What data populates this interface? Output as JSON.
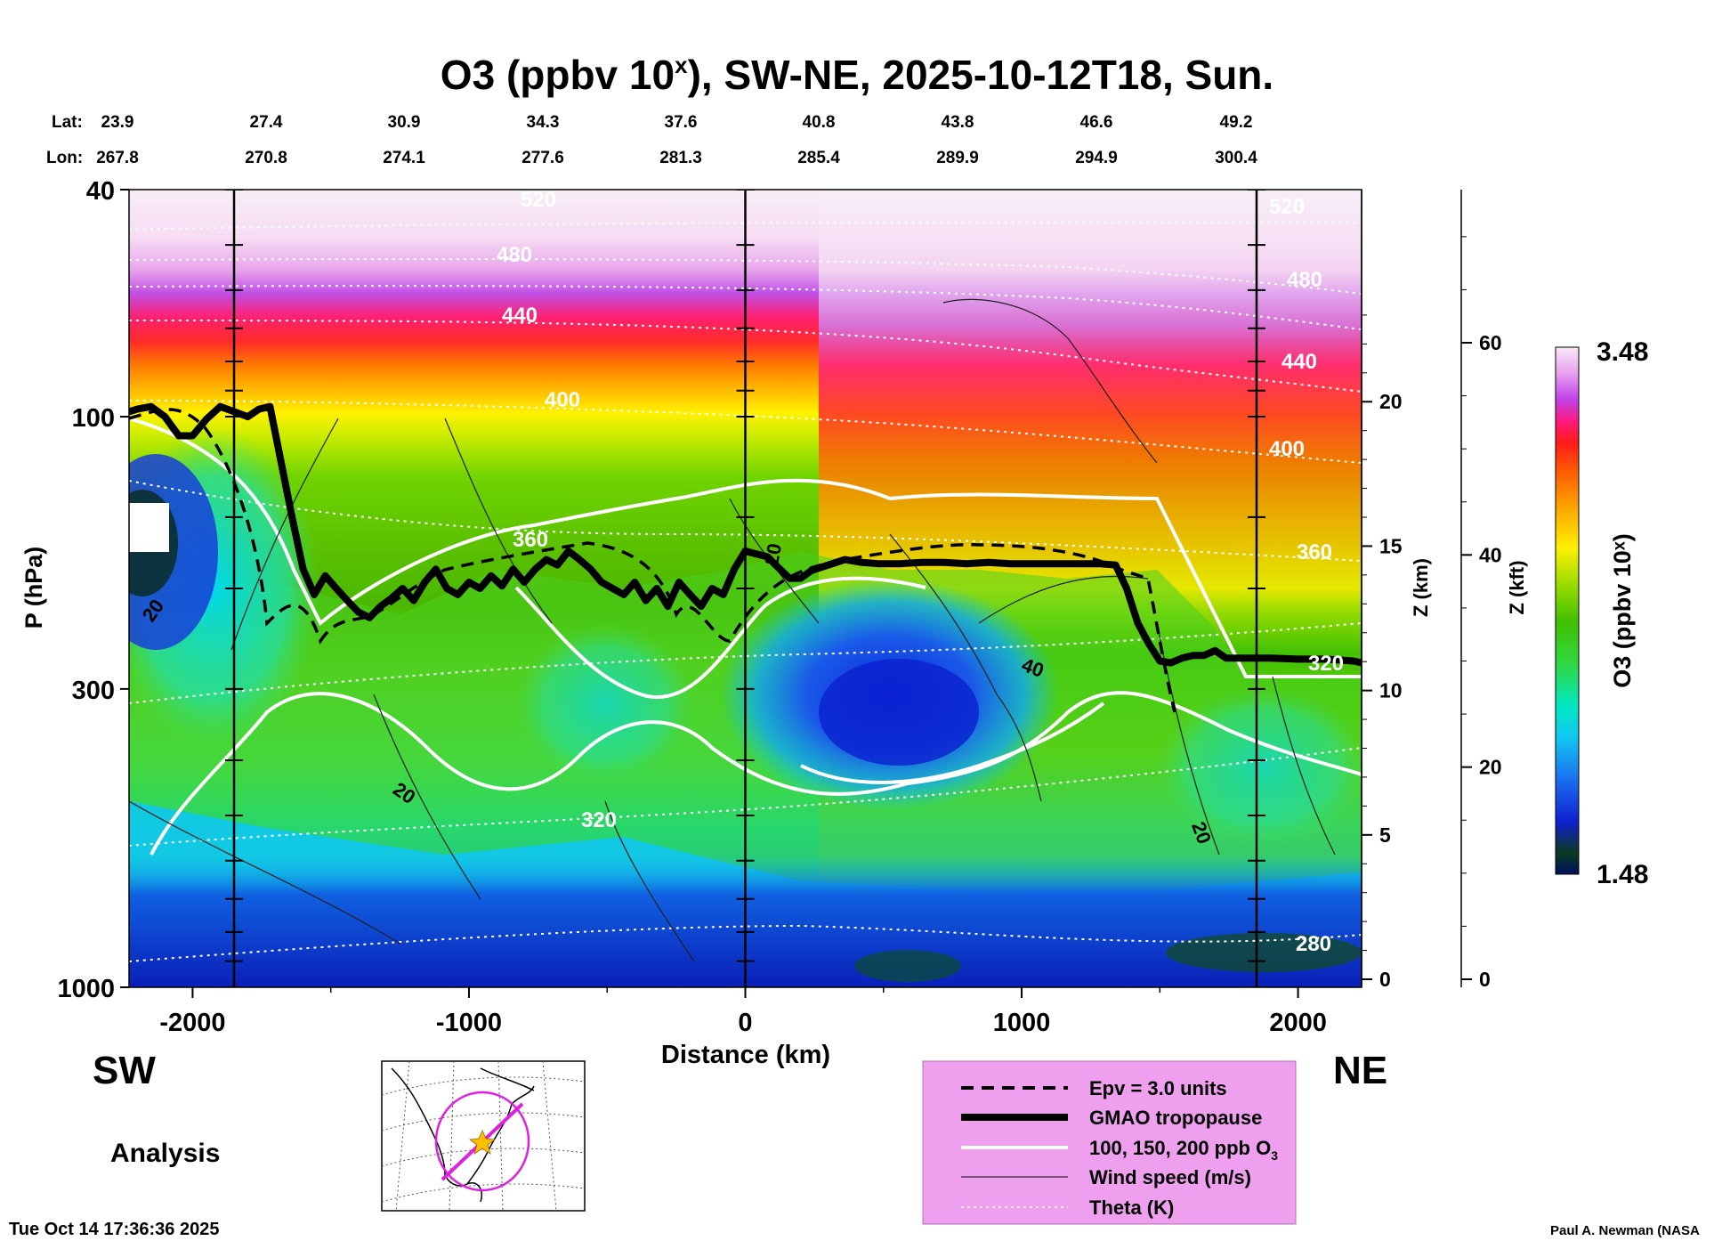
{
  "chart_data": {
    "type": "heatmap",
    "title_prefix": "O3 (ppbv 10",
    "title_sup": "x",
    "title_suffix": "), SW-NE, 2025-10-12T18, Sun.",
    "xlabel": "Distance (km)",
    "ylabel": "P (hPa)",
    "z_km_label": "Z (km)",
    "z_kft_label": "Z (kft)",
    "colorbar_label": "O3 (ppbv 10ˣ)",
    "colorbar_max": "3.48",
    "colorbar_min": "1.48",
    "colorbar_range": [
      1.48,
      3.48
    ],
    "xlim": [
      -2230,
      2230
    ],
    "ylim_hpa": [
      1000,
      40
    ],
    "x_ticks": [
      -2000,
      -1000,
      0,
      1000,
      2000
    ],
    "x_tick_labels": [
      "-2000",
      "-1000",
      "0",
      "1000",
      "2000"
    ],
    "p_ticks": [
      40,
      100,
      300,
      1000
    ],
    "p_tick_labels": [
      "40",
      "100",
      "300",
      "1000"
    ],
    "z_km_ticks": [
      0,
      5,
      10,
      15,
      20
    ],
    "z_km_tick_labels": [
      "0",
      "5",
      "10",
      "15",
      "20"
    ],
    "z_kft_ticks": [
      0,
      20,
      40,
      60
    ],
    "z_kft_tick_labels": [
      "0",
      "20",
      "40",
      "60"
    ],
    "lat_label": "Lat:",
    "lon_label": "Lon:",
    "lats": [
      "23.9",
      "27.4",
      "30.9",
      "34.3",
      "37.6",
      "40.8",
      "43.8",
      "46.6",
      "49.2"
    ],
    "lons": [
      "267.8",
      "270.8",
      "274.1",
      "277.6",
      "281.3",
      "285.4",
      "289.9",
      "294.9",
      "300.4"
    ],
    "station_x_km": [
      -1850,
      0,
      1850
    ],
    "theta_labels": [
      "520",
      "480",
      "440",
      "400",
      "360",
      "320",
      "280",
      "520",
      "480",
      "440",
      "400",
      "360",
      "320"
    ],
    "wind_labels": [
      "20",
      "20",
      "20",
      "40",
      "20"
    ],
    "tropopause_hpa": [
      [
        -2230,
        98
      ],
      [
        -2200,
        97
      ],
      [
        -2150,
        96
      ],
      [
        -2100,
        100
      ],
      [
        -2050,
        108
      ],
      [
        -2000,
        108
      ],
      [
        -1950,
        101
      ],
      [
        -1900,
        96
      ],
      [
        -1850,
        98
      ],
      [
        -1800,
        100
      ],
      [
        -1760,
        97
      ],
      [
        -1720,
        96
      ],
      [
        -1680,
        120
      ],
      [
        -1640,
        150
      ],
      [
        -1600,
        185
      ],
      [
        -1560,
        205
      ],
      [
        -1520,
        190
      ],
      [
        -1480,
        200
      ],
      [
        -1440,
        210
      ],
      [
        -1400,
        220
      ],
      [
        -1360,
        225
      ],
      [
        -1320,
        215
      ],
      [
        -1280,
        208
      ],
      [
        -1240,
        200
      ],
      [
        -1200,
        210
      ],
      [
        -1160,
        195
      ],
      [
        -1120,
        185
      ],
      [
        -1080,
        200
      ],
      [
        -1040,
        205
      ],
      [
        -1000,
        195
      ],
      [
        -960,
        200
      ],
      [
        -920,
        190
      ],
      [
        -880,
        198
      ],
      [
        -840,
        185
      ],
      [
        -800,
        195
      ],
      [
        -760,
        185
      ],
      [
        -720,
        178
      ],
      [
        -680,
        182
      ],
      [
        -640,
        172
      ],
      [
        -600,
        178
      ],
      [
        -560,
        185
      ],
      [
        -520,
        195
      ],
      [
        -480,
        200
      ],
      [
        -440,
        205
      ],
      [
        -400,
        195
      ],
      [
        -360,
        210
      ],
      [
        -320,
        200
      ],
      [
        -280,
        215
      ],
      [
        -240,
        195
      ],
      [
        -200,
        205
      ],
      [
        -160,
        215
      ],
      [
        -120,
        200
      ],
      [
        -80,
        205
      ],
      [
        -40,
        185
      ],
      [
        0,
        172
      ],
      [
        40,
        174
      ],
      [
        80,
        176
      ],
      [
        120,
        184
      ],
      [
        160,
        192
      ],
      [
        200,
        192
      ],
      [
        240,
        186
      ],
      [
        300,
        182
      ],
      [
        360,
        178
      ],
      [
        420,
        180
      ],
      [
        480,
        181
      ],
      [
        560,
        181
      ],
      [
        640,
        180
      ],
      [
        720,
        180
      ],
      [
        800,
        181
      ],
      [
        880,
        180
      ],
      [
        960,
        181
      ],
      [
        1040,
        181
      ],
      [
        1120,
        181
      ],
      [
        1200,
        181
      ],
      [
        1280,
        181
      ],
      [
        1340,
        182
      ],
      [
        1380,
        200
      ],
      [
        1420,
        230
      ],
      [
        1460,
        250
      ],
      [
        1500,
        268
      ],
      [
        1540,
        270
      ],
      [
        1580,
        265
      ],
      [
        1620,
        262
      ],
      [
        1660,
        262
      ],
      [
        1700,
        257
      ],
      [
        1740,
        265
      ],
      [
        1800,
        265
      ],
      [
        1900,
        265
      ],
      [
        2000,
        266
      ],
      [
        2100,
        266
      ],
      [
        2200,
        268
      ],
      [
        2230,
        270
      ]
    ],
    "legend": {
      "epv": "Epv = 3.0 units",
      "tropopause": "GMAO tropopause",
      "ozone_contours_prefix": "100, 150, 200 ppb O",
      "ozone_contours_sub": "3",
      "wind": "Wind speed (m/s)",
      "theta": "Theta (K)"
    },
    "sw_label": "SW",
    "ne_label": "NE",
    "analysis_label": "Analysis"
  },
  "footer": {
    "timestamp": "Tue Oct 14 17:36:36 2025",
    "credit": "Paul A. Newman (NASA"
  },
  "colors": {
    "stratosphere_top": "#f6e6f4",
    "magenta": "#cc55e0",
    "red": "#ff2a2a",
    "orange": "#ffa000",
    "yellow": "#fff200",
    "green": "#70d400",
    "cyan": "#00e0f0",
    "blue": "#1e3ad2",
    "legend_bg": "#eea0ee",
    "map_track": "#e020e0"
  }
}
